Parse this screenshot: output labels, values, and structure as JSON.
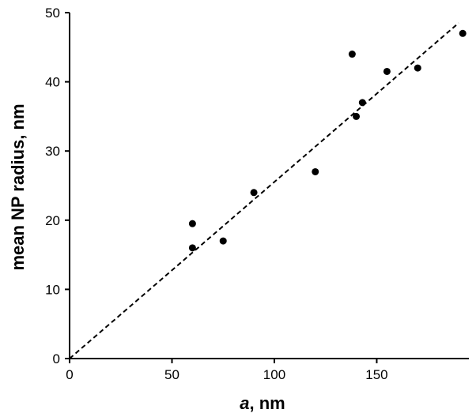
{
  "chart_data": {
    "type": "scatter",
    "xlabel_italic": "a",
    "xlabel_rest": ", nm",
    "ylabel": "mean NP radius, nm",
    "xlim": [
      0,
      195
    ],
    "ylim": [
      0,
      50
    ],
    "x_ticks": [
      0,
      50,
      100,
      150
    ],
    "y_ticks": [
      0,
      10,
      20,
      30,
      40,
      50
    ],
    "grid": false,
    "legend": "none",
    "points": [
      {
        "x": 60,
        "y": 19.5
      },
      {
        "x": 60,
        "y": 16
      },
      {
        "x": 75,
        "y": 17
      },
      {
        "x": 90,
        "y": 24
      },
      {
        "x": 120,
        "y": 27
      },
      {
        "x": 138,
        "y": 44
      },
      {
        "x": 140,
        "y": 35
      },
      {
        "x": 143,
        "y": 37
      },
      {
        "x": 155,
        "y": 41.5
      },
      {
        "x": 170,
        "y": 42
      },
      {
        "x": 192,
        "y": 47
      }
    ],
    "fit_line": {
      "style": "dashed",
      "from": {
        "x": 0,
        "y": 0
      },
      "to": {
        "x": 190,
        "y": 48.5
      }
    },
    "colors": {
      "points": "#000000",
      "line": "#000000",
      "axes": "#000000"
    }
  }
}
